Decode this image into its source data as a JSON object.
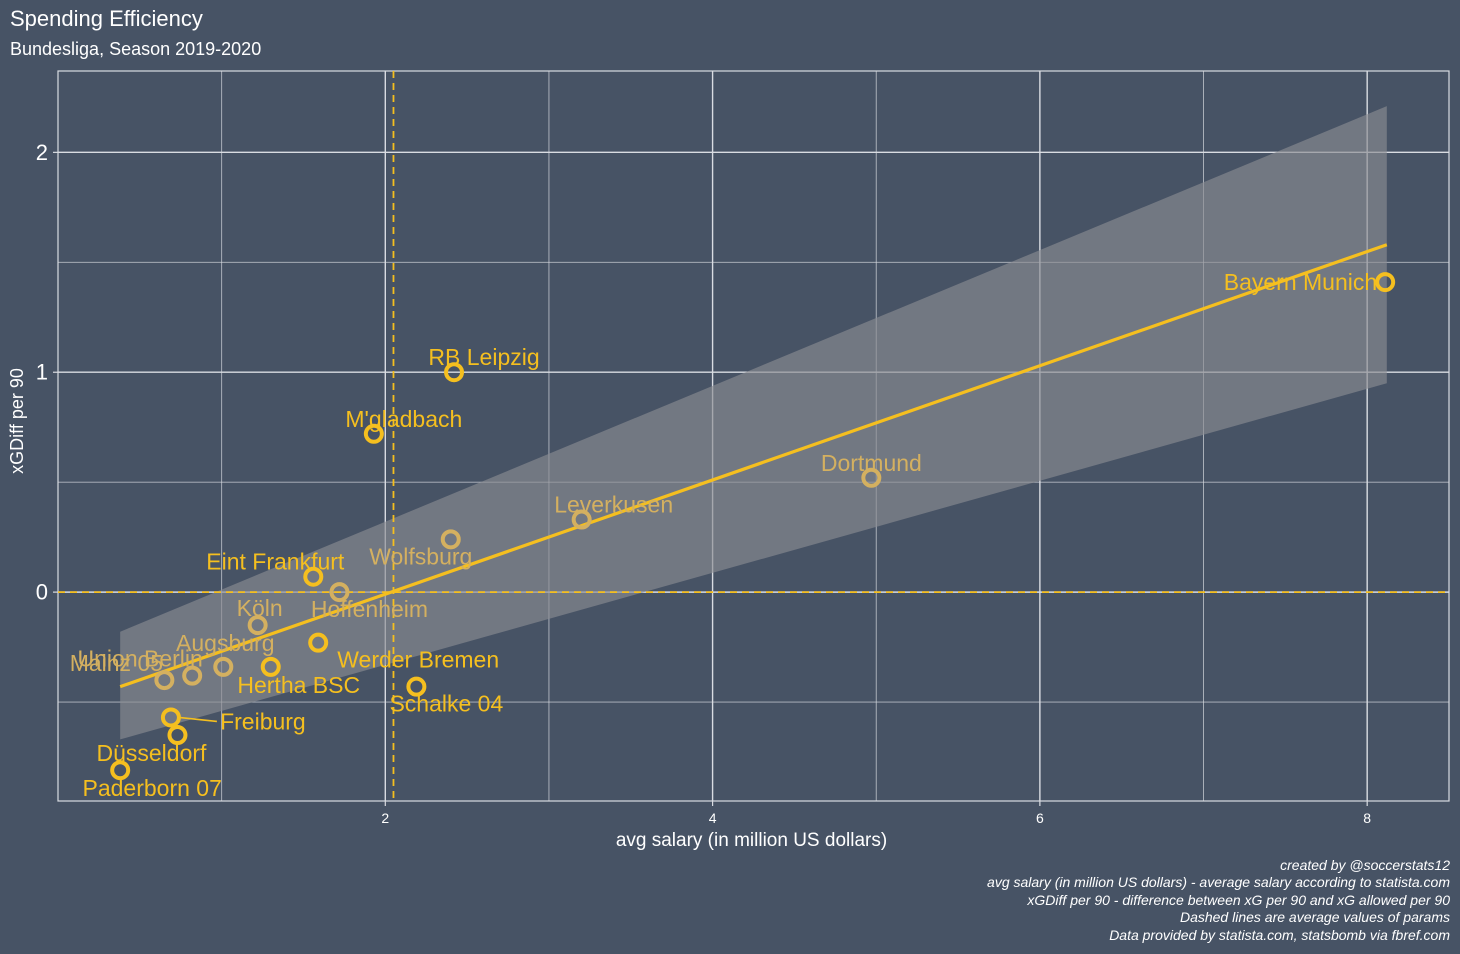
{
  "title": "Spending Efficiency",
  "subtitle": "Bundesliga, Season 2019-2020",
  "caption": [
    "created by @soccerstats12",
    "avg salary (in million US dollars) - average salary according to statista.com",
    "xGDiff per 90 - difference between xG per 90 and xG allowed per 90",
    "Dashed lines are average values of params",
    "Data provided by statista.com, statsbomb via fbref.com"
  ],
  "colors": {
    "background": "#475365",
    "grid": "#d9dce2",
    "accent": "#f5bf1f",
    "label_faded": "#d4b060",
    "ribbon": "#8a8c92"
  },
  "chart_data": {
    "type": "scatter",
    "title": "Spending Efficiency",
    "subtitle": "Bundesliga, Season 2019-2020",
    "xlabel": "avg salary (in million US dollars)",
    "ylabel": "xGDiff per 90",
    "xlim": [
      0,
      8.5
    ],
    "ylim": [
      -0.95,
      2.37
    ],
    "xticks": [
      2,
      4,
      6,
      8
    ],
    "yticks": [
      0,
      1,
      2
    ],
    "grid": true,
    "reference_lines": [
      {
        "axis": "x",
        "value": 2.05,
        "style": "dashed"
      },
      {
        "axis": "y",
        "value": 0.0,
        "style": "dashed"
      }
    ],
    "regression": {
      "x_range": [
        0.38,
        8.12
      ],
      "line": [
        [
          0.38,
          -0.43
        ],
        [
          8.12,
          1.58
        ]
      ],
      "ci_lower": [
        [
          0.38,
          -0.67
        ],
        [
          8.12,
          0.95
        ]
      ],
      "ci_upper": [
        [
          0.38,
          -0.18
        ],
        [
          8.12,
          2.21
        ]
      ]
    },
    "points": [
      {
        "team": "Bayern Munich",
        "x": 8.11,
        "y": 1.41
      },
      {
        "team": "Dortmund",
        "x": 4.97,
        "y": 0.52
      },
      {
        "team": "Leverkusen",
        "x": 3.2,
        "y": 0.33
      },
      {
        "team": "RB Leipzig",
        "x": 2.42,
        "y": 1.0
      },
      {
        "team": "M'gladbach",
        "x": 1.93,
        "y": 0.72
      },
      {
        "team": "Wolfsburg",
        "x": 2.4,
        "y": 0.24
      },
      {
        "team": "Eint Frankfurt",
        "x": 1.56,
        "y": 0.07
      },
      {
        "team": "Hoffenheim",
        "x": 1.72,
        "y": 0.0
      },
      {
        "team": "Köln",
        "x": 1.22,
        "y": -0.15
      },
      {
        "team": "Werder Bremen",
        "x": 1.59,
        "y": -0.23
      },
      {
        "team": "Augsburg",
        "x": 1.01,
        "y": -0.34
      },
      {
        "team": "Hertha BSC",
        "x": 1.3,
        "y": -0.34
      },
      {
        "team": "Schalke 04",
        "x": 2.19,
        "y": -0.43
      },
      {
        "team": "Mainz 05",
        "x": 0.65,
        "y": -0.4
      },
      {
        "team": "Union Berlin",
        "x": 0.82,
        "y": -0.38
      },
      {
        "team": "Freiburg",
        "x": 0.69,
        "y": -0.57
      },
      {
        "team": "Düsseldorf",
        "x": 0.73,
        "y": -0.65
      },
      {
        "team": "Paderborn 07",
        "x": 0.38,
        "y": -0.81
      }
    ]
  }
}
